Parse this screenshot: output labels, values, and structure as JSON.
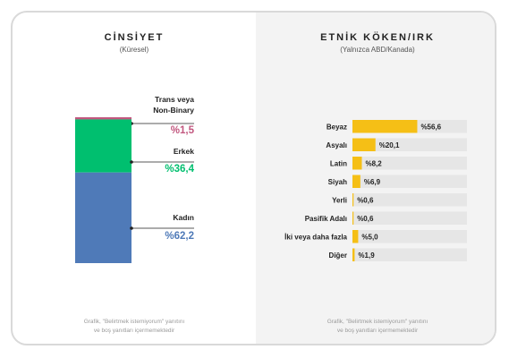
{
  "gender": {
    "title": "CİNSİYET",
    "subtitle": "(Küresel)",
    "footnote_line1": "Grafik, \"Belirtmek istemiyorum\" yanıtını",
    "footnote_line2": "ve boş yanıtları içermemektedir"
  },
  "ethnicity": {
    "title": "ETNİK KÖKEN/IRK",
    "subtitle": "(Yalnızca ABD/Kanada)",
    "footnote_line1": "Grafik, \"Belirtmek istemiyorum\" yanıtını",
    "footnote_line2": "ve boş yanıtları içermemektedir"
  },
  "chart_data": [
    {
      "type": "bar",
      "stacked": true,
      "orientation": "vertical",
      "categories": [
        "Trans veya Non-Binary",
        "Erkek",
        "Kadın"
      ],
      "values": [
        1.5,
        36.4,
        62.2
      ],
      "value_labels": [
        "%1,5",
        "%36,4",
        "%62,2"
      ],
      "colors": [
        "#c2577f",
        "#00bf6f",
        "#4f7ab8"
      ],
      "title": "CİNSİYET",
      "subtitle": "(Küresel)"
    },
    {
      "type": "bar",
      "orientation": "horizontal",
      "categories": [
        "Beyaz",
        "Asyalı",
        "Latin",
        "Siyah",
        "Yerli",
        "Pasifik Adalı",
        "İki veya daha fazla",
        "Diğer"
      ],
      "values": [
        56.6,
        20.1,
        8.2,
        6.9,
        0.6,
        0.6,
        5.0,
        1.9
      ],
      "value_labels": [
        "%56,6",
        "%20,1",
        "%8,2",
        "%6,9",
        "%0,6",
        "%0,6",
        "%5,0",
        "%1,9"
      ],
      "color": "#f5bf16",
      "track_color": "#e6e6e6",
      "xlim": [
        0,
        100
      ],
      "title": "ETNİK KÖKEN/IRK",
      "subtitle": "(Yalnızca ABD/Kanada)"
    }
  ]
}
